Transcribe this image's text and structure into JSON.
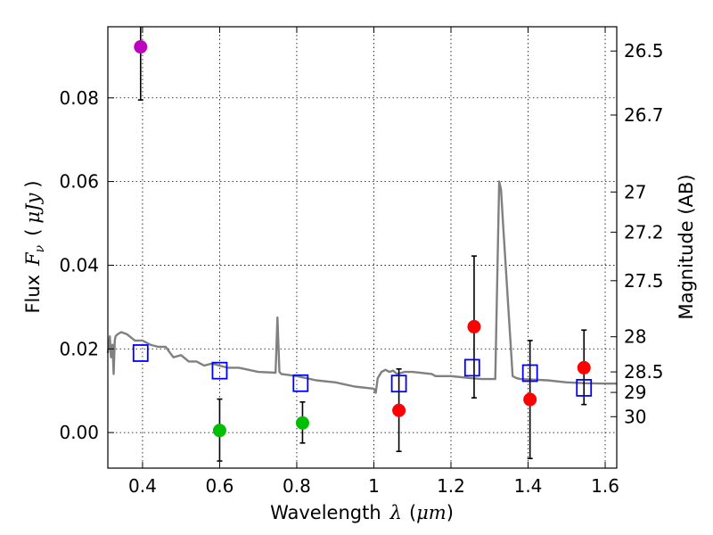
{
  "chart_data": {
    "type": "scatter",
    "xlabel_prefix": "Wavelength",
    "xlabel_symbol": "λ",
    "xlabel_unit_open": "(",
    "xlabel_unit": "μm",
    "xlabel_unit_close": ")",
    "ylabel_prefix": "Flux",
    "ylabel_symbol": "F",
    "ylabel_subscript": "ν",
    "ylabel_unit_open": "(",
    "ylabel_unit": "μJy",
    "ylabel_unit_close": ")",
    "y2label": "Magnitude (AB)",
    "xlim": [
      0.31,
      1.63
    ],
    "ylim": [
      -0.0085,
      0.097
    ],
    "grid": true,
    "x_ticks": [
      {
        "value": 0.4,
        "label": "0.4"
      },
      {
        "value": 0.6,
        "label": "0.6"
      },
      {
        "value": 0.8,
        "label": "0.8"
      },
      {
        "value": 1.0,
        "label": "1"
      },
      {
        "value": 1.2,
        "label": "1.2"
      },
      {
        "value": 1.4,
        "label": "1.4"
      },
      {
        "value": 1.6,
        "label": "1.6"
      }
    ],
    "y_ticks": [
      {
        "value": 0.0,
        "label": "0.00"
      },
      {
        "value": 0.02,
        "label": "0.02"
      },
      {
        "value": 0.04,
        "label": "0.04"
      },
      {
        "value": 0.06,
        "label": "0.06"
      },
      {
        "value": 0.08,
        "label": "0.08"
      }
    ],
    "y2_ticks": [
      {
        "flux": 0.0912,
        "label": "26.5"
      },
      {
        "flux": 0.0759,
        "label": "26.7"
      },
      {
        "flux": 0.0575,
        "label": "27"
      },
      {
        "flux": 0.0479,
        "label": "27.2"
      },
      {
        "flux": 0.0363,
        "label": "27.5"
      },
      {
        "flux": 0.0229,
        "label": "28"
      },
      {
        "flux": 0.0145,
        "label": "28.5"
      },
      {
        "flux": 0.0096,
        "label": "29"
      },
      {
        "flux": 0.0038,
        "label": "30"
      }
    ],
    "model_spectrum": {
      "name": "model SED",
      "color": "#808080",
      "x": [
        0.31,
        0.315,
        0.318,
        0.322,
        0.325,
        0.328,
        0.33,
        0.335,
        0.345,
        0.36,
        0.38,
        0.4,
        0.42,
        0.44,
        0.46,
        0.48,
        0.5,
        0.52,
        0.54,
        0.56,
        0.58,
        0.6,
        0.62,
        0.65,
        0.7,
        0.745,
        0.75,
        0.755,
        0.76,
        0.8,
        0.85,
        0.9,
        0.95,
        1.0,
        1.005,
        1.01,
        1.02,
        1.03,
        1.04,
        1.05,
        1.06,
        1.08,
        1.1,
        1.15,
        1.16,
        1.2,
        1.25,
        1.28,
        1.3,
        1.315,
        1.325,
        1.33,
        1.335,
        1.36,
        1.37,
        1.38,
        1.4,
        1.45,
        1.5,
        1.55,
        1.6,
        1.63
      ],
      "y": [
        0.019,
        0.023,
        0.018,
        0.021,
        0.014,
        0.022,
        0.023,
        0.0235,
        0.024,
        0.0235,
        0.022,
        0.022,
        0.021,
        0.0205,
        0.0205,
        0.018,
        0.0185,
        0.017,
        0.017,
        0.016,
        0.0165,
        0.016,
        0.0155,
        0.0155,
        0.0145,
        0.0143,
        0.0275,
        0.0145,
        0.014,
        0.0135,
        0.0125,
        0.012,
        0.011,
        0.0105,
        0.0095,
        0.013,
        0.0145,
        0.015,
        0.0145,
        0.0148,
        0.014,
        0.0145,
        0.0145,
        0.014,
        0.0135,
        0.0135,
        0.013,
        0.0128,
        0.0128,
        0.0128,
        0.06,
        0.058,
        0.05,
        0.0135,
        0.013,
        0.0128,
        0.0127,
        0.0125,
        0.012,
        0.0118,
        0.0117,
        0.0117
      ]
    },
    "series": [
      {
        "name": "model band flux",
        "marker": "square",
        "color": "#0000ff",
        "points": [
          {
            "x": 0.395,
            "y": 0.019
          },
          {
            "x": 0.6,
            "y": 0.0148
          },
          {
            "x": 0.81,
            "y": 0.0118
          },
          {
            "x": 1.065,
            "y": 0.0117
          },
          {
            "x": 1.255,
            "y": 0.0155
          },
          {
            "x": 1.405,
            "y": 0.0142
          },
          {
            "x": 1.545,
            "y": 0.0107
          }
        ]
      },
      {
        "name": "purple detection",
        "marker": "circle",
        "color": "#bf00bf",
        "points": [
          {
            "x": 0.395,
            "y": 0.0922,
            "err_low": 0.0795,
            "err_high": 0.0985
          }
        ]
      },
      {
        "name": "green detections",
        "marker": "circle",
        "color": "#00bf00",
        "points": [
          {
            "x": 0.6,
            "y": 0.0005,
            "err_low": -0.0068,
            "err_high": 0.008
          },
          {
            "x": 0.815,
            "y": 0.0023,
            "err_low": -0.0025,
            "err_high": 0.0073
          }
        ]
      },
      {
        "name": "red detections",
        "marker": "circle",
        "color": "#ff0000",
        "points": [
          {
            "x": 1.065,
            "y": 0.0053,
            "err_low": -0.0045,
            "err_high": 0.0152
          },
          {
            "x": 1.26,
            "y": 0.0253,
            "err_low": 0.0083,
            "err_high": 0.0422
          },
          {
            "x": 1.405,
            "y": 0.0079,
            "err_low": -0.0062,
            "err_high": 0.022
          },
          {
            "x": 1.545,
            "y": 0.0155,
            "err_low": 0.0067,
            "err_high": 0.0245
          }
        ]
      }
    ]
  }
}
